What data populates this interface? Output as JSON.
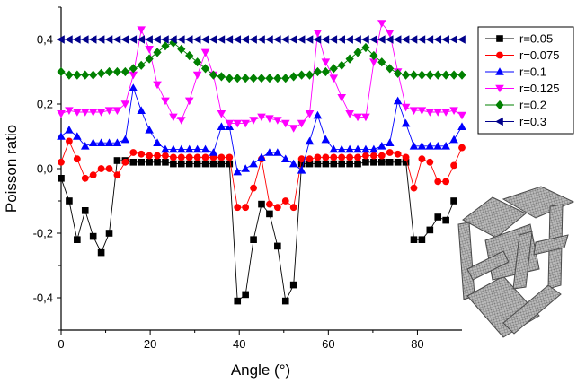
{
  "chart_data": {
    "type": "line",
    "title": "",
    "xlabel": "Angle (°)",
    "ylabel": "Poisson ratio",
    "xlim": [
      0,
      90
    ],
    "ylim": [
      -0.5,
      0.5
    ],
    "xticks": [
      0,
      20,
      40,
      60,
      80
    ],
    "yticks": [
      -0.4,
      -0.2,
      0.0,
      0.2,
      0.4
    ],
    "xtick_labels": [
      "0",
      "20",
      "40",
      "60",
      "80"
    ],
    "ytick_labels": [
      "-0,4",
      "-0,2",
      "0,0",
      "0,2",
      "0,4"
    ],
    "grid": false,
    "legend_position": "top-right",
    "x": [
      0,
      1.8,
      3.6,
      5.4,
      7.2,
      9,
      10.8,
      12.6,
      14.4,
      16.2,
      18,
      19.8,
      21.6,
      23.4,
      25.2,
      27,
      28.8,
      30.6,
      32.4,
      34.2,
      36,
      37.8,
      39.6,
      41.4,
      43.2,
      45,
      46.8,
      48.6,
      50.4,
      52.2,
      54,
      55.8,
      57.6,
      59.4,
      61.2,
      63,
      64.8,
      66.6,
      68.4,
      70.2,
      72,
      73.8,
      75.6,
      77.4,
      79.2,
      81,
      82.8,
      84.6,
      86.4,
      88.2,
      90
    ],
    "series": [
      {
        "name": "r=0.05",
        "color": "#000000",
        "marker": "square",
        "values": [
          -0.03,
          -0.1,
          -0.22,
          -0.13,
          -0.21,
          -0.26,
          -0.2,
          0.025,
          0.025,
          0.02,
          0.02,
          0.02,
          0.02,
          0.02,
          0.015,
          0.015,
          0.015,
          0.015,
          0.015,
          0.015,
          0.015,
          0.015,
          -0.41,
          -0.39,
          -0.22,
          -0.11,
          -0.14,
          -0.24,
          -0.41,
          -0.36,
          0.015,
          0.015,
          0.015,
          0.015,
          0.015,
          0.015,
          0.015,
          0.015,
          0.02,
          0.02,
          0.02,
          0.02,
          0.02,
          0.02,
          -0.22,
          -0.22,
          -0.19,
          -0.15,
          -0.16,
          -0.1,
          null
        ]
      },
      {
        "name": "r=0.075",
        "color": "#ff0000",
        "marker": "circle",
        "values": [
          0.02,
          0.085,
          0.03,
          -0.03,
          -0.02,
          0.0,
          0.0,
          -0.02,
          0.02,
          0.05,
          0.045,
          0.04,
          0.04,
          0.04,
          0.035,
          0.035,
          0.035,
          0.035,
          0.035,
          0.035,
          0.035,
          0.035,
          -0.12,
          -0.12,
          -0.06,
          0.03,
          -0.11,
          -0.12,
          -0.1,
          -0.12,
          0.03,
          0.03,
          0.035,
          0.035,
          0.035,
          0.035,
          0.035,
          0.035,
          0.04,
          0.04,
          0.04,
          0.05,
          0.045,
          0.035,
          -0.06,
          0.03,
          0.02,
          -0.04,
          -0.04,
          0.01,
          0.065
        ]
      },
      {
        "name": "r=0.1",
        "color": "#0000ff",
        "marker": "triangle-up",
        "values": [
          0.1,
          0.12,
          0.1,
          0.07,
          0.08,
          0.08,
          0.08,
          0.08,
          0.09,
          0.25,
          0.18,
          0.12,
          0.08,
          0.06,
          0.06,
          0.06,
          0.06,
          0.06,
          0.06,
          0.05,
          0.13,
          0.13,
          -0.01,
          0.0,
          0.015,
          0.035,
          0.05,
          0.05,
          0.03,
          0.015,
          -0.005,
          0.085,
          0.165,
          0.09,
          0.06,
          0.06,
          0.06,
          0.06,
          0.06,
          0.06,
          0.07,
          0.08,
          0.21,
          0.14,
          0.07,
          0.07,
          0.07,
          0.07,
          0.07,
          0.09,
          0.13
        ]
      },
      {
        "name": "r=0.125",
        "color": "#ff00ff",
        "marker": "triangle-down",
        "values": [
          0.17,
          0.18,
          0.175,
          0.175,
          0.175,
          0.175,
          0.18,
          0.18,
          0.2,
          0.29,
          0.43,
          0.37,
          0.26,
          0.21,
          0.16,
          0.15,
          0.21,
          0.29,
          0.36,
          0.29,
          0.17,
          0.14,
          0.14,
          0.14,
          0.15,
          0.16,
          0.155,
          0.15,
          0.14,
          0.125,
          0.14,
          0.17,
          0.42,
          0.33,
          0.28,
          0.22,
          0.17,
          0.16,
          0.16,
          0.33,
          0.45,
          0.42,
          0.3,
          0.19,
          0.18,
          0.18,
          0.175,
          0.175,
          0.175,
          0.18,
          0.165
        ]
      },
      {
        "name": "r=0.2",
        "color": "#008000",
        "marker": "diamond",
        "values": [
          0.3,
          0.29,
          0.29,
          0.29,
          0.29,
          0.295,
          0.3,
          0.3,
          0.3,
          0.31,
          0.32,
          0.34,
          0.36,
          0.38,
          0.39,
          0.37,
          0.35,
          0.33,
          0.31,
          0.29,
          0.285,
          0.28,
          0.28,
          0.28,
          0.28,
          0.28,
          0.28,
          0.28,
          0.28,
          0.285,
          0.29,
          0.29,
          0.3,
          0.3,
          0.31,
          0.32,
          0.34,
          0.36,
          0.375,
          0.35,
          0.33,
          0.31,
          0.295,
          0.29,
          0.29,
          0.29,
          0.29,
          0.29,
          0.29,
          0.29,
          0.29
        ]
      },
      {
        "name": "r=0.3",
        "color": "#00008b",
        "marker": "triangle-left",
        "values": [
          0.4,
          0.4,
          0.4,
          0.4,
          0.4,
          0.4,
          0.4,
          0.4,
          0.4,
          0.4,
          0.4,
          0.4,
          0.4,
          0.4,
          0.4,
          0.4,
          0.4,
          0.4,
          0.4,
          0.4,
          0.4,
          0.4,
          0.4,
          0.4,
          0.4,
          0.4,
          0.4,
          0.4,
          0.4,
          0.4,
          0.4,
          0.4,
          0.4,
          0.4,
          0.4,
          0.4,
          0.4,
          0.4,
          0.4,
          0.4,
          0.4,
          0.4,
          0.4,
          0.4,
          0.4,
          0.4,
          0.4,
          0.4,
          0.4,
          0.4,
          0.4
        ]
      }
    ]
  }
}
